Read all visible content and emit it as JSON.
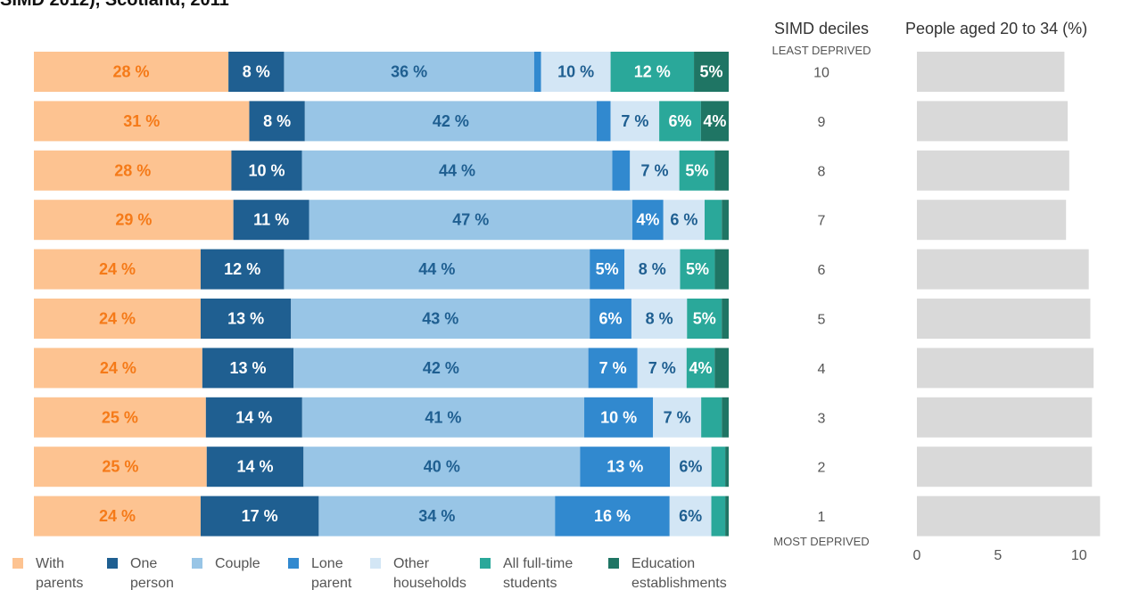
{
  "title_fragment": "SIMD 2012), Scotland, 2011",
  "chart_data": [
    {
      "type": "bar",
      "stacked": true,
      "orientation": "horizontal",
      "unit": "%",
      "categories": [
        "10",
        "9",
        "8",
        "7",
        "6",
        "5",
        "4",
        "3",
        "2",
        "1"
      ],
      "series": [
        {
          "name": "With parents",
          "color": "#fdc391",
          "label_color": "#f57a18",
          "values": [
            28,
            31,
            28,
            29,
            24,
            24,
            24,
            25,
            25,
            24
          ],
          "labels": [
            "28 %",
            "31 %",
            "28 %",
            "29 %",
            "24 %",
            "24 %",
            "24 %",
            "25 %",
            "25 %",
            "24 %"
          ]
        },
        {
          "name": "One person",
          "color": "#1f5f91",
          "label_color": "#ffffff",
          "values": [
            8,
            8,
            10,
            11,
            12,
            13,
            13,
            14,
            14,
            17
          ],
          "labels": [
            "8 %",
            "8 %",
            "10 %",
            "11 %",
            "12 %",
            "13 %",
            "13 %",
            "14 %",
            "14 %",
            "17 %"
          ]
        },
        {
          "name": "Couple",
          "color": "#98c5e6",
          "label_color": "#1f5f91",
          "values": [
            36,
            42,
            44,
            47,
            44,
            43,
            42,
            41,
            40,
            34
          ],
          "labels": [
            "36 %",
            "42 %",
            "44 %",
            "47 %",
            "44 %",
            "43 %",
            "42 %",
            "41 %",
            "40 %",
            "34 %"
          ]
        },
        {
          "name": "Lone parent",
          "color": "#3189cf",
          "label_color": "#ffffff",
          "values": [
            1,
            2,
            2.5,
            4.5,
            5,
            6,
            7,
            10,
            13,
            16.5
          ],
          "labels": [
            "",
            "",
            "",
            "4%",
            "5%",
            "6%",
            "7 %",
            "10 %",
            "13 %",
            "16 %"
          ]
        },
        {
          "name": "Other households",
          "color": "#d3e6f5",
          "label_color": "#1f5f91",
          "values": [
            10,
            7,
            7,
            6,
            8,
            8,
            7,
            7,
            6,
            6
          ],
          "labels": [
            "10 %",
            "7 %",
            "7 %",
            "6 %",
            "8 %",
            "8 %",
            "7 %",
            "7 %",
            "6%",
            "6%"
          ]
        },
        {
          "name": "All full-time students",
          "color": "#2aa89a",
          "label_color": "#ffffff",
          "values": [
            12,
            6,
            5,
            2.5,
            5,
            5,
            4,
            3,
            2,
            2
          ],
          "labels": [
            "12 %",
            "6%",
            "5%",
            "",
            "5%",
            "5%",
            "4%",
            "",
            "",
            ""
          ]
        },
        {
          "name": "Education establishments",
          "color": "#1f7564",
          "label_color": "#ffffff",
          "values": [
            5,
            4,
            2,
            1,
            2,
            1,
            2,
            1,
            0.5,
            0.5
          ],
          "labels": [
            "5%",
            "4%",
            "",
            "",
            "",
            "",
            "",
            "",
            "",
            ""
          ]
        }
      ],
      "legend": {
        "position": "bottom",
        "lines": [
          [
            "With",
            "parents"
          ],
          [
            "One",
            "person"
          ],
          [
            "Couple"
          ],
          [
            "Lone",
            "parent"
          ],
          [
            "Other",
            "households"
          ],
          [
            "All full-time",
            "students"
          ],
          [
            "Education",
            "establishments"
          ]
        ]
      },
      "xlim": [
        0,
        100
      ]
    },
    {
      "type": "bar",
      "orientation": "horizontal",
      "title": "People aged 20 to 34 (%)",
      "categories": [
        "10",
        "9",
        "8",
        "7",
        "6",
        "5",
        "4",
        "3",
        "2",
        "1"
      ],
      "values": [
        9.1,
        9.3,
        9.4,
        9.2,
        10.6,
        10.7,
        10.9,
        10.8,
        10.8,
        11.3
      ],
      "color": "#d9d9d9",
      "xticks": [
        "0",
        "5",
        "10"
      ],
      "xlim": [
        0,
        11.5
      ]
    }
  ],
  "deciles_axis": {
    "title": "SIMD deciles",
    "top_label": "LEAST DEPRIVED",
    "bottom_label": "MOST DEPRIVED"
  }
}
